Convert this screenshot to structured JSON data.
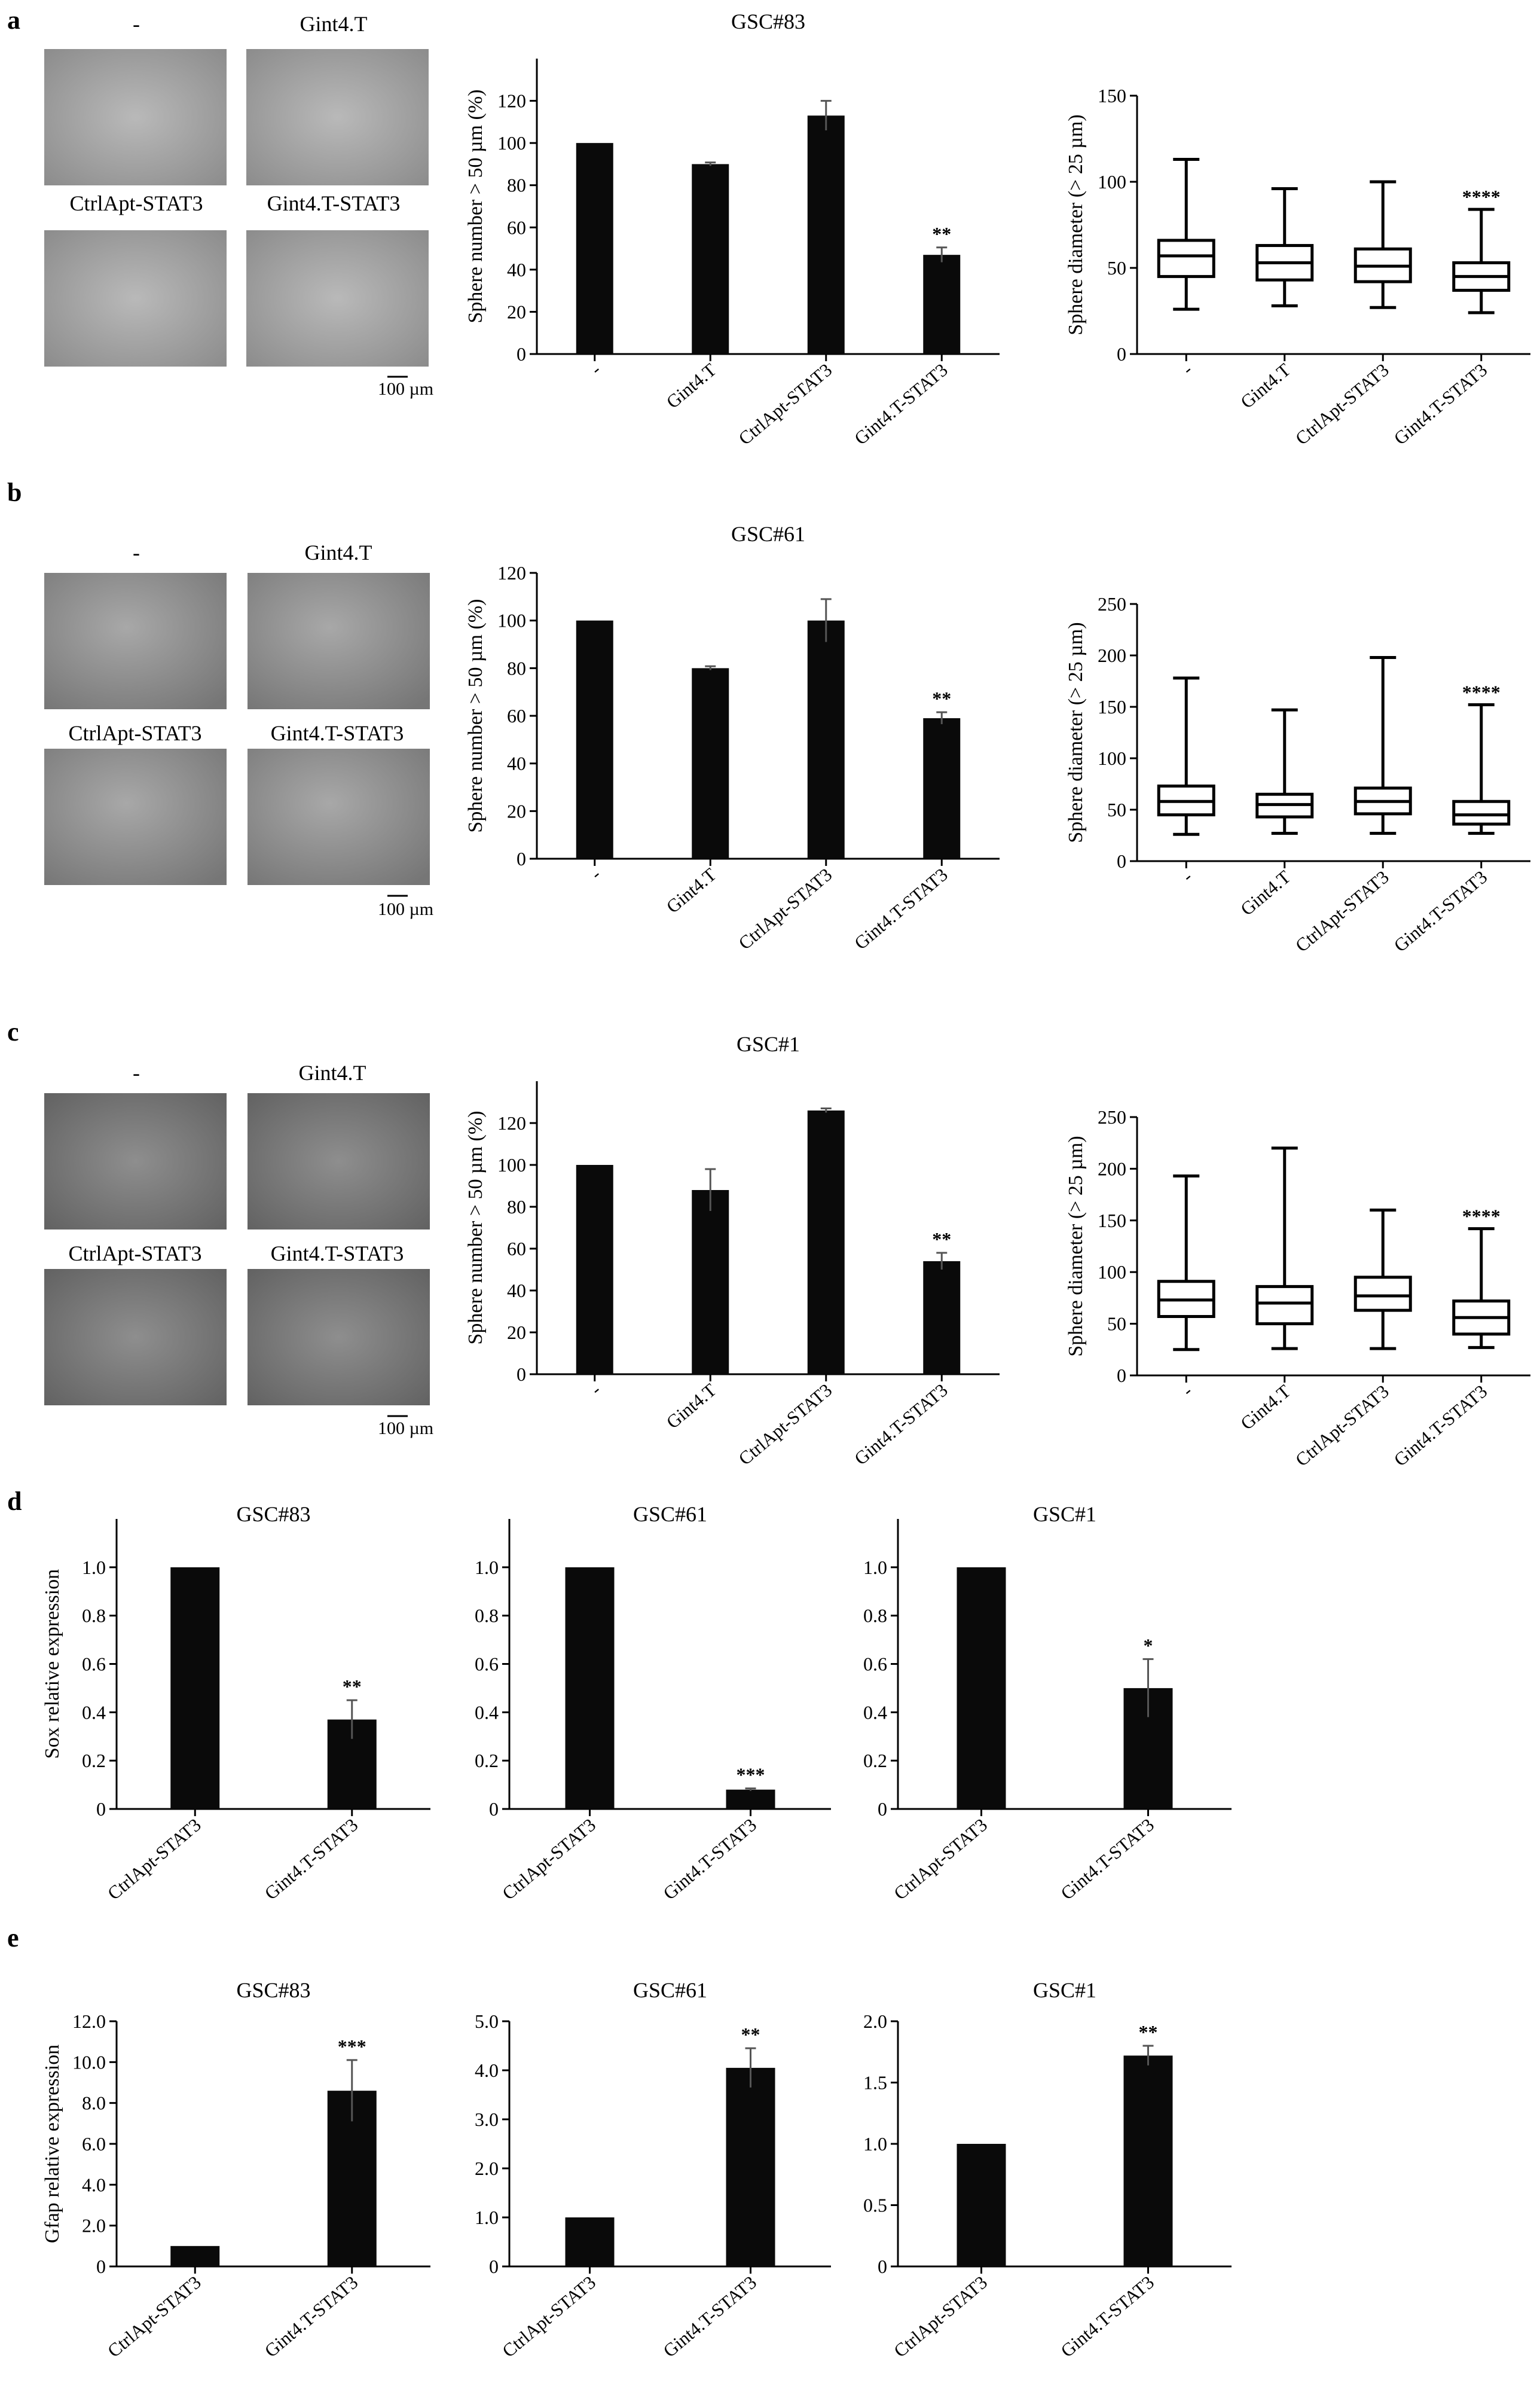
{
  "panel_labels": [
    "a",
    "b",
    "c",
    "d",
    "e"
  ],
  "sphere_images": {
    "labels": [
      "-",
      "Gint4.T",
      "CtrlApt-STAT3",
      "Gint4.T-STAT3"
    ],
    "scale_bar": "100 µm"
  },
  "chart_data": [
    {
      "id": "a-bar",
      "type": "bar",
      "panel": "a",
      "title": "GSC#83",
      "ylabel": "Sphere number > 50 µm (%)",
      "ylim": [
        0,
        140
      ],
      "yticks": [
        0,
        20,
        40,
        60,
        80,
        100,
        120
      ],
      "ytick_labels": [
        "0",
        "20",
        "40",
        "60",
        "80",
        "100",
        "120"
      ],
      "categories": [
        "-",
        "Gint4.T",
        "CtrlApt-STAT3",
        "Gint4.T-STAT3"
      ],
      "values": [
        100,
        90,
        113,
        47
      ],
      "errors": [
        0,
        0.8,
        7,
        3.5
      ],
      "significance": [
        "",
        "",
        "",
        "**"
      ]
    },
    {
      "id": "a-box",
      "type": "box",
      "panel": "a",
      "title": "",
      "ylabel": "Sphere diameter (> 25 µm)",
      "ylim": [
        0,
        150
      ],
      "yticks": [
        0,
        50,
        100,
        150
      ],
      "ytick_labels": [
        "0",
        "50",
        "100",
        "150"
      ],
      "categories": [
        "-",
        "Gint4.T",
        "CtrlApt-STAT3",
        "Gint4.T-STAT3"
      ],
      "boxes": [
        {
          "min": 26,
          "q1": 45,
          "median": 57,
          "q3": 66,
          "max": 113
        },
        {
          "min": 28,
          "q1": 43,
          "median": 53,
          "q3": 63,
          "max": 96
        },
        {
          "min": 27,
          "q1": 42,
          "median": 51,
          "q3": 61,
          "max": 100
        },
        {
          "min": 24,
          "q1": 37,
          "median": 45,
          "q3": 53,
          "max": 84
        }
      ],
      "significance": [
        "",
        "",
        "",
        "****"
      ]
    },
    {
      "id": "b-bar",
      "type": "bar",
      "panel": "b",
      "title": "GSC#61",
      "ylabel": "Sphere number > 50 µm (%)",
      "ylim": [
        0,
        120
      ],
      "yticks": [
        0,
        20,
        40,
        60,
        80,
        100,
        120
      ],
      "ytick_labels": [
        "0",
        "20",
        "40",
        "60",
        "80",
        "100",
        "120"
      ],
      "categories": [
        "-",
        "Gint4.T",
        "CtrlApt-STAT3",
        "Gint4.T-STAT3"
      ],
      "values": [
        100,
        80,
        100,
        59
      ],
      "errors": [
        0,
        0.8,
        9,
        2.5
      ],
      "significance": [
        "",
        "",
        "",
        "**"
      ]
    },
    {
      "id": "b-box",
      "type": "box",
      "panel": "b",
      "title": "",
      "ylabel": "Sphere diameter (> 25 µm)",
      "ylim": [
        0,
        250
      ],
      "yticks": [
        0,
        50,
        100,
        150,
        200,
        250
      ],
      "ytick_labels": [
        "0",
        "50",
        "100",
        "150",
        "200",
        "250"
      ],
      "categories": [
        "-",
        "Gint4.T",
        "CtrlApt-STAT3",
        "Gint4.T-STAT3"
      ],
      "boxes": [
        {
          "min": 26,
          "q1": 45,
          "median": 58,
          "q3": 73,
          "max": 178
        },
        {
          "min": 27,
          "q1": 43,
          "median": 55,
          "q3": 65,
          "max": 147
        },
        {
          "min": 27,
          "q1": 46,
          "median": 58,
          "q3": 71,
          "max": 198
        },
        {
          "min": 27,
          "q1": 36,
          "median": 45,
          "q3": 58,
          "max": 152
        }
      ],
      "significance": [
        "",
        "",
        "",
        "****"
      ]
    },
    {
      "id": "c-bar",
      "type": "bar",
      "panel": "c",
      "title": "GSC#1",
      "ylabel": "Sphere number > 50 µm (%)",
      "ylim": [
        0,
        140
      ],
      "yticks": [
        0,
        20,
        40,
        60,
        80,
        100,
        120
      ],
      "ytick_labels": [
        "0",
        "20",
        "40",
        "60",
        "80",
        "100",
        "120"
      ],
      "categories": [
        "-",
        "Gint4.T",
        "CtrlApt-STAT3",
        "Gint4.T-STAT3"
      ],
      "values": [
        100,
        88,
        126,
        54
      ],
      "errors": [
        0,
        10,
        1,
        4
      ],
      "significance": [
        "",
        "",
        "",
        "**"
      ]
    },
    {
      "id": "c-box",
      "type": "box",
      "panel": "c",
      "title": "",
      "ylabel": "Sphere diameter (> 25 µm)",
      "ylim": [
        0,
        250
      ],
      "yticks": [
        0,
        50,
        100,
        150,
        200,
        250
      ],
      "ytick_labels": [
        "0",
        "50",
        "100",
        "150",
        "200",
        "250"
      ],
      "categories": [
        "-",
        "Gint4.T",
        "CtrlApt-STAT3",
        "Gint4.T-STAT3"
      ],
      "boxes": [
        {
          "min": 25,
          "q1": 57,
          "median": 73,
          "q3": 91,
          "max": 193
        },
        {
          "min": 26,
          "q1": 50,
          "median": 70,
          "q3": 86,
          "max": 220
        },
        {
          "min": 26,
          "q1": 63,
          "median": 77,
          "q3": 95,
          "max": 160
        },
        {
          "min": 27,
          "q1": 40,
          "median": 56,
          "q3": 72,
          "max": 142
        }
      ],
      "significance": [
        "",
        "",
        "",
        "****"
      ]
    },
    {
      "id": "d-1",
      "type": "bar",
      "panel": "d",
      "title": "GSC#83",
      "ylabel": "Sox relative expression",
      "ylim": [
        0,
        1.2
      ],
      "yticks": [
        0,
        0.2,
        0.4,
        0.6,
        0.8,
        1.0
      ],
      "ytick_labels": [
        "0",
        "0.2",
        "0.4",
        "0.6",
        "0.8",
        "1.0"
      ],
      "categories": [
        "CtrlApt-STAT3",
        "Gint4.T-STAT3"
      ],
      "values": [
        1.0,
        0.37
      ],
      "errors": [
        0,
        0.08
      ],
      "significance": [
        "",
        "**"
      ]
    },
    {
      "id": "d-2",
      "type": "bar",
      "panel": "d",
      "title": "GSC#61",
      "ylabel": "",
      "ylim": [
        0,
        1.2
      ],
      "yticks": [
        0,
        0.2,
        0.4,
        0.6,
        0.8,
        1.0
      ],
      "ytick_labels": [
        "0",
        "0.2",
        "0.4",
        "0.6",
        "0.8",
        "1.0"
      ],
      "categories": [
        "CtrlApt-STAT3",
        "Gint4.T-STAT3"
      ],
      "values": [
        1.0,
        0.08
      ],
      "errors": [
        0,
        0.005
      ],
      "significance": [
        "",
        "***"
      ]
    },
    {
      "id": "d-3",
      "type": "bar",
      "panel": "d",
      "title": "GSC#1",
      "ylabel": "",
      "ylim": [
        0,
        1.2
      ],
      "yticks": [
        0,
        0.2,
        0.4,
        0.6,
        0.8,
        1.0
      ],
      "ytick_labels": [
        "0",
        "0.2",
        "0.4",
        "0.6",
        "0.8",
        "1.0"
      ],
      "categories": [
        "CtrlApt-STAT3",
        "Gint4.T-STAT3"
      ],
      "values": [
        1.0,
        0.5
      ],
      "errors": [
        0,
        0.12
      ],
      "significance": [
        "",
        "*"
      ]
    },
    {
      "id": "e-1",
      "type": "bar",
      "panel": "e",
      "title": "GSC#83",
      "ylabel": "Gfap relative expression",
      "ylim": [
        0,
        12
      ],
      "yticks": [
        0,
        2,
        4,
        6,
        8,
        10,
        12
      ],
      "ytick_labels": [
        "0",
        "2.0",
        "4.0",
        "6.0",
        "8.0",
        "10.0",
        "12.0"
      ],
      "categories": [
        "CtrlApt-STAT3",
        "Gint4.T-STAT3"
      ],
      "values": [
        1.0,
        8.6
      ],
      "errors": [
        0,
        1.5
      ],
      "significance": [
        "",
        "***"
      ]
    },
    {
      "id": "e-2",
      "type": "bar",
      "panel": "e",
      "title": "GSC#61",
      "ylabel": "",
      "ylim": [
        0,
        5
      ],
      "yticks": [
        0,
        1,
        2,
        3,
        4,
        5
      ],
      "ytick_labels": [
        "0",
        "1.0",
        "2.0",
        "3.0",
        "4.0",
        "5.0"
      ],
      "categories": [
        "CtrlApt-STAT3",
        "Gint4.T-STAT3"
      ],
      "values": [
        1.0,
        4.05
      ],
      "errors": [
        0,
        0.4
      ],
      "significance": [
        "",
        "**"
      ]
    },
    {
      "id": "e-3",
      "type": "bar",
      "panel": "e",
      "title": "GSC#1",
      "ylabel": "",
      "ylim": [
        0,
        2
      ],
      "yticks": [
        0,
        0.5,
        1.0,
        1.5,
        2.0
      ],
      "ytick_labels": [
        "0",
        "0.5",
        "1.0",
        "1.5",
        "2.0"
      ],
      "categories": [
        "CtrlApt-STAT3",
        "Gint4.T-STAT3"
      ],
      "values": [
        1.0,
        1.72
      ],
      "errors": [
        0,
        0.08
      ],
      "significance": [
        "",
        "**"
      ]
    }
  ]
}
